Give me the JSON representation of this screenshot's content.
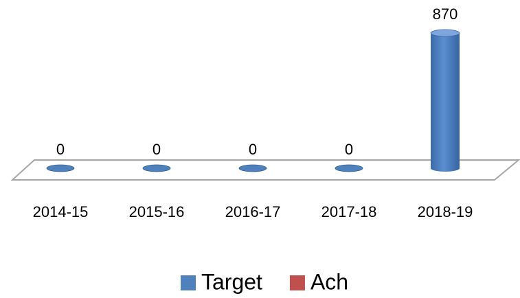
{
  "chart_data": {
    "type": "bar3d",
    "categories": [
      "2014-15",
      "2015-16",
      "2016-17",
      "2017-18",
      "2018-19"
    ],
    "series": [
      {
        "name": "Target",
        "color": "#4f81bd",
        "values": [
          0,
          0,
          0,
          0,
          870
        ]
      },
      {
        "name": "Ach",
        "color": "#c0504d",
        "values": [
          null,
          null,
          null,
          null,
          null
        ]
      }
    ],
    "legend": "bottom"
  }
}
